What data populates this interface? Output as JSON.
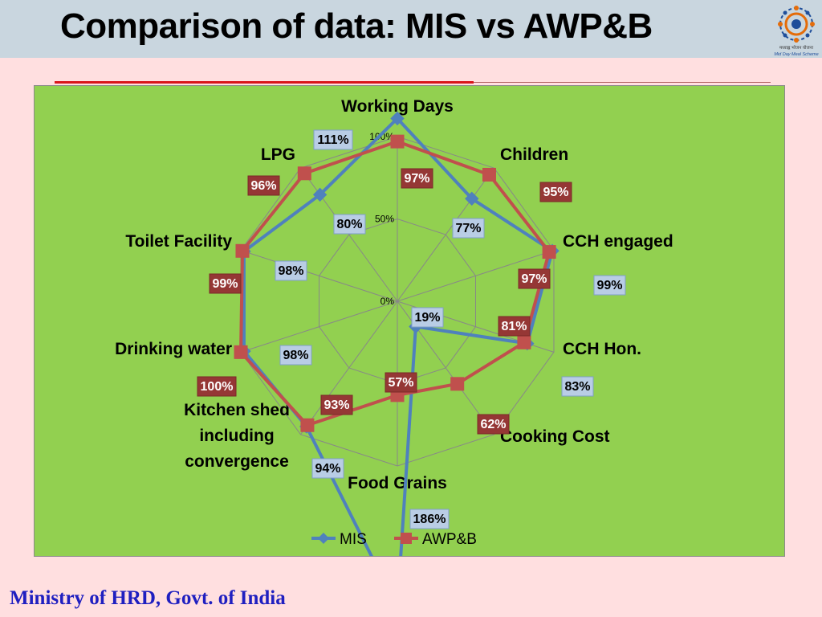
{
  "slide": {
    "title": "Comparison of data: MIS vs AWP&B",
    "footer": "Ministry of HRD, Govt. of India",
    "logo_text_line1": "मध्याह्न भोजन योजना",
    "logo_text_line2": "Mid Day Meal Scheme"
  },
  "chart_data": {
    "type": "radar",
    "categories": [
      "Working Days",
      "Children",
      "CCH engaged",
      "CCH Hon.",
      "Cooking Cost",
      "Food Grains",
      "Kitchen shed including convergence",
      "Drinking water",
      "Toilet Facility",
      "LPG"
    ],
    "category_lines": [
      [
        "Working Days"
      ],
      [
        "Children"
      ],
      [
        "CCH engaged"
      ],
      [
        "CCH Hon."
      ],
      [
        "Cooking Cost"
      ],
      [
        "Food Grains"
      ],
      [
        "Kitchen shed",
        "including",
        "convergence"
      ],
      [
        "Drinking water"
      ],
      [
        "Toilet Facility"
      ],
      [
        "LPG"
      ]
    ],
    "radial_ticks": [
      "0%",
      "50%",
      "100%"
    ],
    "rmax": 100,
    "series": [
      {
        "name": "MIS",
        "color": "#4f81bd",
        "marker": "diamond",
        "values": [
          111,
          77,
          99,
          83,
          19,
          186,
          94,
          98,
          98,
          80
        ],
        "labels": [
          "111%",
          "77%",
          "99%",
          "83%",
          "19%",
          "186%",
          "94%",
          "98%",
          "98%",
          "80%"
        ]
      },
      {
        "name": "AWP&B",
        "color": "#c0504d",
        "marker": "square",
        "values": [
          97,
          95,
          97,
          81,
          62,
          57,
          93,
          100,
          99,
          96
        ],
        "labels": [
          "97%",
          "95%",
          "97%",
          "81%",
          "62%",
          "57%",
          "93%",
          "100%",
          "99%",
          "96%"
        ]
      }
    ],
    "legend_position": "bottom"
  }
}
